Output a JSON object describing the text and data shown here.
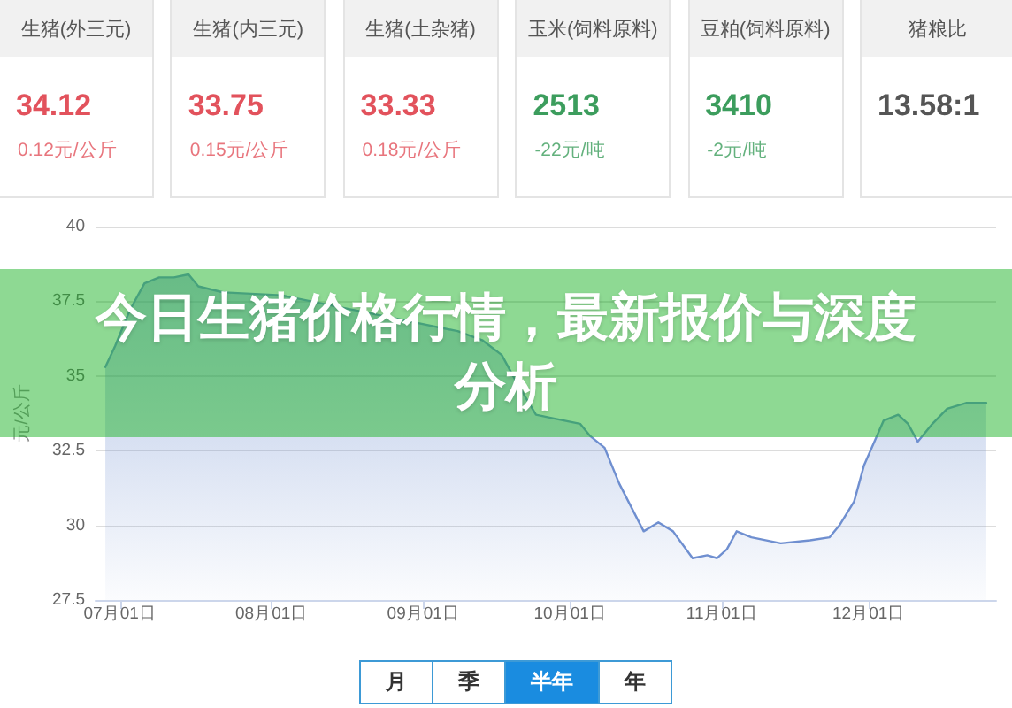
{
  "chart_data": [
    {
      "type": "other",
      "categories": [
        "生猪(外三元)",
        "生猪(内三元)",
        "生猪(土杂猪)",
        "玉米(饲料原料)",
        "豆粕(饲料原料)",
        "猪粮比"
      ],
      "value_labels": [
        "34.12",
        "33.75",
        "33.33",
        "2513",
        "3410",
        "13.58:1"
      ],
      "annotations": [
        "0.12元/公斤",
        "0.15元/公斤",
        "0.18元/公斤",
        "-22元/吨",
        "-2元/吨"
      ]
    },
    {
      "type": "area",
      "title": "今日生猪价格行情，最新报价与深度分析",
      "ylabel": "元/公斤",
      "x": [
        "--06-28",
        "--06-30",
        "--07-03",
        "--07-06",
        "--07-09",
        "--07-12",
        "--07-15",
        "--07-17",
        "--07-22",
        "--08-03",
        "--08-15",
        "--08-27",
        "--09-08",
        "--09-13",
        "--09-17",
        "--09-20",
        "--09-24",
        "--09-27",
        "--10-03",
        "--10-05",
        "--10-08",
        "--10-11",
        "--10-16",
        "--10-19",
        "--10-22",
        "--10-26",
        "--10-29",
        "--10-31",
        "--11-02",
        "--11-04",
        "--11-07",
        "--11-13",
        "--11-19",
        "--11-23",
        "--11-25",
        "--11-28",
        "--11-30",
        "--12-04",
        "--12-07",
        "--12-09",
        "--12-11",
        "--12-14",
        "--12-17",
        "--12-21",
        "--12-25"
      ],
      "values": [
        35.3,
        36.0,
        37.2,
        38.1,
        38.3,
        38.3,
        38.4,
        38.0,
        37.8,
        37.7,
        37.3,
        36.9,
        36.5,
        36.2,
        35.7,
        34.8,
        33.7,
        33.6,
        33.4,
        33.0,
        32.6,
        31.4,
        29.8,
        30.1,
        29.8,
        28.9,
        29.0,
        28.9,
        29.2,
        29.8,
        29.6,
        29.4,
        29.5,
        29.6,
        30.0,
        30.8,
        32.0,
        33.5,
        33.7,
        33.4,
        32.8,
        33.4,
        33.9,
        34.1,
        34.1
      ],
      "color": "#6f8fd0",
      "xlim": [
        "--06-26",
        "--12-27"
      ],
      "xticks": [
        {
          "value": "--07-01",
          "label": "07月01日"
        },
        {
          "value": "--08-01",
          "label": "08月01日"
        },
        {
          "value": "--09-01",
          "label": "09月01日"
        },
        {
          "value": "--10-01",
          "label": "10月01日"
        },
        {
          "value": "--11-01",
          "label": "11月01日"
        },
        {
          "value": "--12-01",
          "label": "12月01日"
        }
      ],
      "ylim": [
        27.5,
        40
      ],
      "yticks": [
        27.5,
        30,
        32.5,
        35,
        37.5,
        40
      ],
      "grid": "y",
      "marker": "none"
    },
    {
      "type": "other",
      "categories": [
        "月",
        "季",
        "半年",
        "年"
      ],
      "colors": [
        "#ffffff",
        "#ffffff",
        "#1a8ce0",
        "#ffffff"
      ]
    }
  ]
}
